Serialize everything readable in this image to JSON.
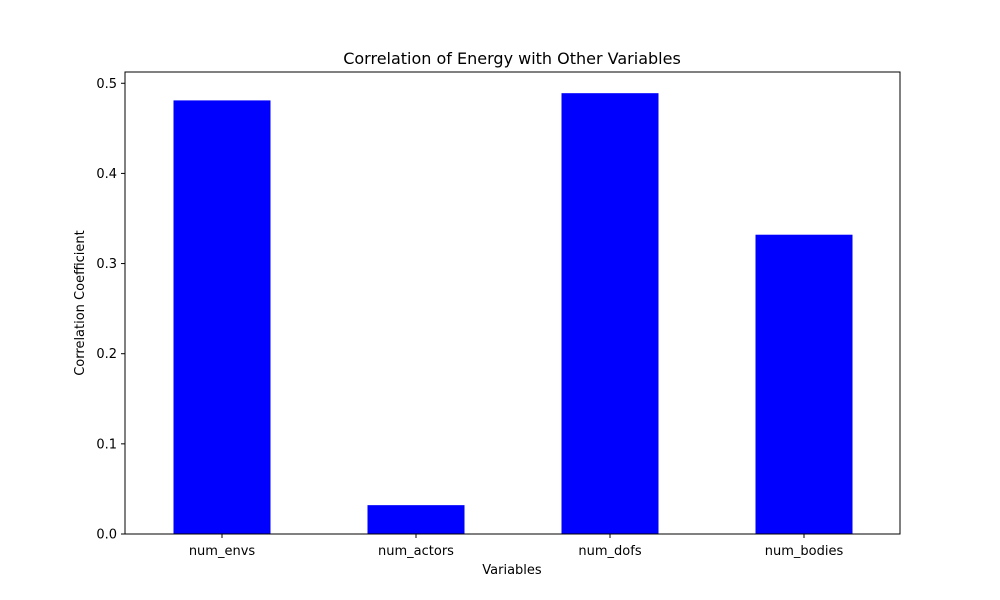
{
  "chart_data": {
    "type": "bar",
    "title": "Correlation of Energy with Other Variables",
    "xlabel": "Variables",
    "ylabel": "Correlation Coefficient",
    "categories": [
      "num_envs",
      "num_actors",
      "num_dofs",
      "num_bodies"
    ],
    "values": [
      0.481,
      0.032,
      0.489,
      0.332
    ],
    "ylim": [
      0,
      0.5125
    ],
    "yticks": [
      "0.0",
      "0.1",
      "0.2",
      "0.3",
      "0.4",
      "0.5"
    ],
    "bar_color": "#0000ff",
    "grid": false,
    "legend": "none"
  }
}
